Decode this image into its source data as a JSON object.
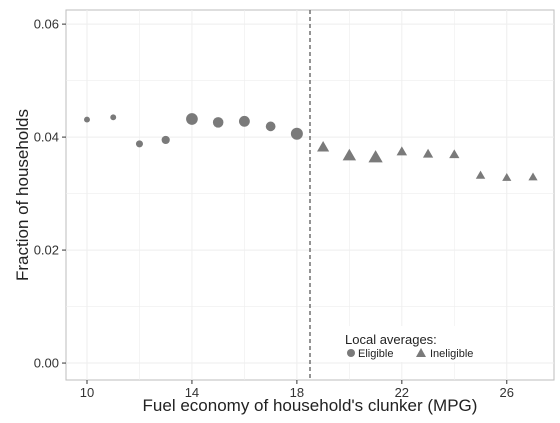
{
  "chart_data": {
    "type": "scatter",
    "xlabel": "Fuel economy of household's clunker (MPG)",
    "ylabel": "Fraction of households",
    "xlim": [
      9.2,
      27.8
    ],
    "ylim": [
      -0.003,
      0.0625
    ],
    "x_ticks": [
      10,
      14,
      18,
      22,
      26
    ],
    "x_tick_labels": [
      "10",
      "14",
      "18",
      "22",
      "26"
    ],
    "y_ticks": [
      0.0,
      0.02,
      0.04,
      0.06
    ],
    "y_tick_labels": [
      "0.00",
      "0.02",
      "0.04",
      "0.06"
    ],
    "grid": true,
    "cutoff_line": {
      "x": 18.5,
      "style": "dashed"
    },
    "series": [
      {
        "name": "Eligible",
        "marker": "circle",
        "x": [
          10,
          11,
          12,
          13,
          14,
          15,
          16,
          17,
          18
        ],
        "y": [
          0.0431,
          0.0435,
          0.0388,
          0.0395,
          0.0432,
          0.0426,
          0.0428,
          0.0419,
          0.0406
        ],
        "weight": [
          1,
          1,
          1.4,
          1.8,
          3,
          2.6,
          2.7,
          2.3,
          3.1
        ]
      },
      {
        "name": "Ineligible",
        "marker": "triangle",
        "x": [
          19,
          20,
          21,
          22,
          23,
          24,
          25,
          26,
          27
        ],
        "y": [
          0.0382,
          0.0367,
          0.0364,
          0.0374,
          0.037,
          0.0369,
          0.0332,
          0.0328,
          0.0329
        ],
        "weight": [
          2.8,
          3.3,
          3.6,
          2.2,
          2.1,
          2.1,
          1.8,
          1.7,
          1.7
        ]
      }
    ],
    "legend": {
      "title": "Local averages:",
      "placement": "bottom-right",
      "entries": [
        "Eligible",
        "Ineligible"
      ]
    },
    "marker_color": "#7a7a7a",
    "panel_border_color": "#bdbdbd",
    "grid_color": "#eeeeee"
  }
}
